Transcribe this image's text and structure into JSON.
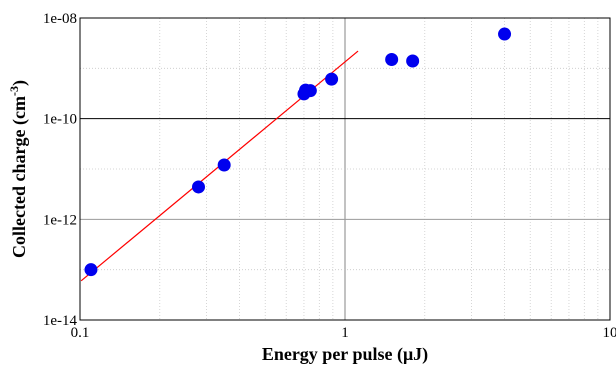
{
  "chart_data": {
    "type": "scatter",
    "title": "",
    "xlabel": "Energy per pulse (μJ)",
    "ylabel_main": "Collected charge (cm",
    "ylabel_sup": "-3",
    "ylabel_end": ")",
    "x_scale": "log",
    "y_scale": "log",
    "xlim": [
      0.1,
      10
    ],
    "ylim": [
      1e-14,
      1e-08
    ],
    "x_ticks": [
      {
        "value": 0.1,
        "label": "0.1"
      },
      {
        "value": 1,
        "label": "1"
      },
      {
        "value": 10,
        "label": "10"
      }
    ],
    "y_ticks": [
      {
        "value": 1e-14,
        "label": "1e-14"
      },
      {
        "value": 1e-12,
        "label": "1e-12"
      },
      {
        "value": 1e-10,
        "label": "1e-10"
      },
      {
        "value": 1e-08,
        "label": "1e-08"
      }
    ],
    "grid": true,
    "legend": "none",
    "points_color": "#0000ee",
    "fit_color": "#ff0000",
    "series": [
      {
        "values": [
          [
            0.11,
            1e-13
          ],
          [
            0.28,
            4.4e-12
          ],
          [
            0.35,
            1.2e-11
          ],
          [
            0.7,
            3.1e-10
          ],
          [
            0.71,
            3.7e-10
          ],
          [
            0.74,
            3.6e-10
          ],
          [
            0.89,
            6.1e-10
          ],
          [
            1.5,
            1.5e-09
          ],
          [
            1.8,
            1.4e-09
          ],
          [
            4.0,
            4.8e-09
          ]
        ]
      }
    ],
    "fit_line": [
      [
        0.101,
        6e-14
      ],
      [
        1.12,
        2.2e-09
      ]
    ]
  }
}
